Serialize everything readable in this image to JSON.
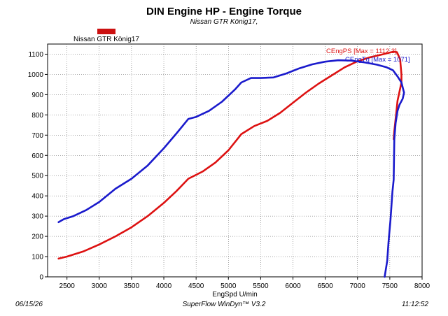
{
  "title": "DIN Engine HP - Engine Torque",
  "subtitle": "Nissan GTR König17,",
  "legend": {
    "label": "Nissan GTR König17",
    "color": "#cc1111"
  },
  "footer": {
    "date": "06/15/26",
    "software": "SuperFlow WinDyn™ V3.2",
    "time": "11:12:52"
  },
  "chart_data": {
    "type": "line",
    "xlabel": "EngSpd U/min",
    "ylabel": "",
    "xlim": [
      2200,
      8000
    ],
    "ylim": [
      0,
      1150
    ],
    "xticks": [
      2500,
      3000,
      3500,
      4000,
      4500,
      5000,
      5500,
      6000,
      6500,
      7000,
      7500,
      8000
    ],
    "yticks": [
      0,
      100,
      200,
      300,
      400,
      500,
      600,
      700,
      800,
      900,
      1000,
      1100
    ],
    "grid": true,
    "series": [
      {
        "name": "CEngPS [Max = 1112.3]",
        "color": "#dd1111",
        "points": [
          [
            2370,
            90
          ],
          [
            2500,
            100
          ],
          [
            2750,
            125
          ],
          [
            3000,
            160
          ],
          [
            3250,
            200
          ],
          [
            3500,
            245
          ],
          [
            3750,
            300
          ],
          [
            4000,
            365
          ],
          [
            4200,
            425
          ],
          [
            4380,
            485
          ],
          [
            4600,
            520
          ],
          [
            4800,
            565
          ],
          [
            5000,
            625
          ],
          [
            5200,
            705
          ],
          [
            5400,
            745
          ],
          [
            5600,
            770
          ],
          [
            5800,
            810
          ],
          [
            6000,
            860
          ],
          [
            6200,
            910
          ],
          [
            6400,
            955
          ],
          [
            6600,
            995
          ],
          [
            6800,
            1035
          ],
          [
            7000,
            1065
          ],
          [
            7200,
            1085
          ],
          [
            7400,
            1100
          ],
          [
            7550,
            1112
          ],
          [
            7610,
            1110
          ],
          [
            7660,
            1075
          ],
          [
            7680,
            1000
          ],
          [
            7680,
            960
          ],
          [
            7640,
            900
          ],
          [
            7620,
            870
          ],
          [
            7600,
            810
          ],
          [
            7570,
            720
          ],
          [
            7560,
            680
          ]
        ]
      },
      {
        "name": "CEngTq [Max = 1071]",
        "color": "#1a1acc",
        "points": [
          [
            2370,
            270
          ],
          [
            2450,
            285
          ],
          [
            2600,
            300
          ],
          [
            2800,
            330
          ],
          [
            3000,
            370
          ],
          [
            3250,
            435
          ],
          [
            3500,
            485
          ],
          [
            3750,
            550
          ],
          [
            4000,
            635
          ],
          [
            4200,
            710
          ],
          [
            4380,
            780
          ],
          [
            4500,
            790
          ],
          [
            4700,
            820
          ],
          [
            4900,
            865
          ],
          [
            5100,
            925
          ],
          [
            5200,
            960
          ],
          [
            5350,
            982
          ],
          [
            5500,
            982
          ],
          [
            5700,
            985
          ],
          [
            5900,
            1005
          ],
          [
            6100,
            1030
          ],
          [
            6300,
            1050
          ],
          [
            6500,
            1063
          ],
          [
            6700,
            1070
          ],
          [
            6900,
            1068
          ],
          [
            7100,
            1060
          ],
          [
            7300,
            1048
          ],
          [
            7450,
            1035
          ],
          [
            7550,
            1020
          ],
          [
            7620,
            990
          ],
          [
            7680,
            960
          ],
          [
            7720,
            910
          ],
          [
            7700,
            880
          ],
          [
            7650,
            850
          ],
          [
            7620,
            820
          ],
          [
            7590,
            760
          ],
          [
            7570,
            680
          ],
          [
            7560,
            480
          ],
          [
            7540,
            420
          ],
          [
            7510,
            280
          ],
          [
            7480,
            170
          ],
          [
            7460,
            80
          ],
          [
            7420,
            0
          ]
        ]
      }
    ],
    "annotations": [
      {
        "text": "CEngPS [Max = 1112.3]",
        "color": "#dd1111"
      },
      {
        "text": "CEngTq [Max = 1071]",
        "color": "#1a1acc"
      }
    ]
  }
}
